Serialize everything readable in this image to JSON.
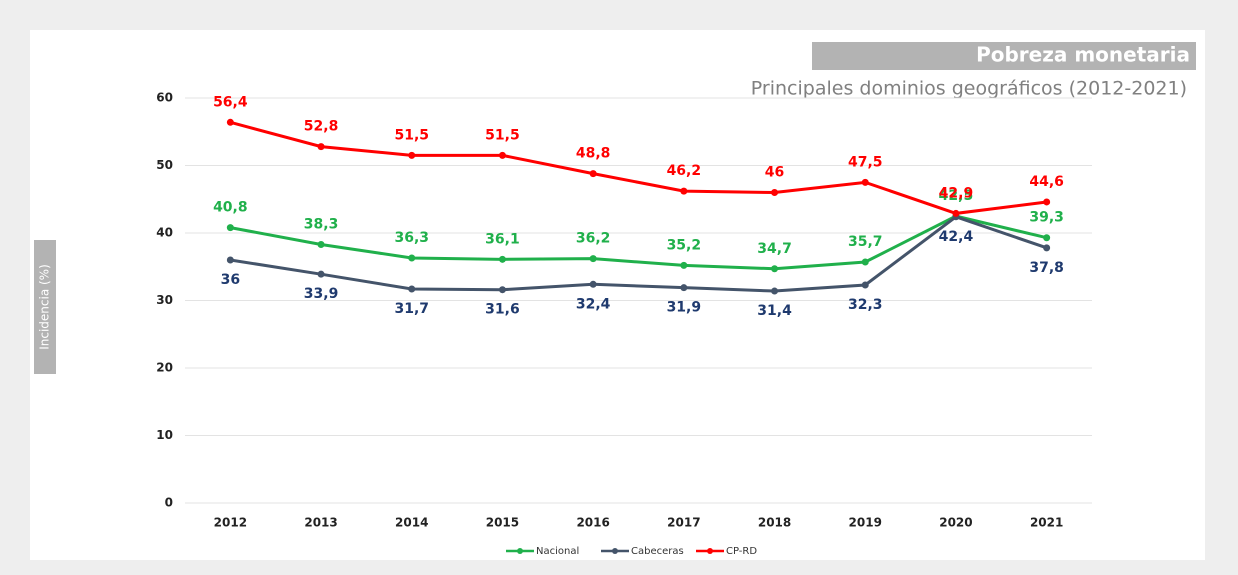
{
  "chart_data": {
    "type": "line",
    "title": "Pobreza monetaria",
    "subtitle": "Principales dominios geográficos (2012-2021)",
    "y_label": "Incidencia (%)",
    "categories": [
      "2012",
      "2013",
      "2014",
      "2015",
      "2016",
      "2017",
      "2018",
      "2019",
      "2020",
      "2021"
    ],
    "series": [
      {
        "name": "Nacional",
        "color": "#20b04b",
        "values": [
          40.8,
          38.3,
          36.3,
          36.1,
          36.2,
          35.2,
          34.7,
          35.7,
          42.5,
          39.3
        ],
        "value_labels": [
          "40,8",
          "38,3",
          "36,3",
          "36,1",
          "36,2",
          "35,2",
          "34,7",
          "35,7",
          "42,5",
          "39,3"
        ]
      },
      {
        "name": "Cabeceras",
        "color": "#44546a",
        "values": [
          36,
          33.9,
          31.7,
          31.6,
          32.4,
          31.9,
          31.4,
          32.3,
          42.4,
          37.8
        ],
        "value_labels": [
          "36",
          "33,9",
          "31,7",
          "31,6",
          "32,4",
          "31,9",
          "31,4",
          "32,3",
          "42,4",
          "37,8"
        ]
      },
      {
        "name": "CP-RD",
        "color": "#ff0000",
        "values": [
          56.4,
          52.8,
          51.5,
          51.5,
          48.8,
          46.2,
          46,
          47.5,
          42.9,
          44.6
        ],
        "value_labels": [
          "56,4",
          "52,8",
          "51,5",
          "51,5",
          "48,8",
          "46,2",
          "46",
          "47,5",
          "42,9",
          "44,6"
        ]
      }
    ],
    "ylim": [
      0,
      60
    ],
    "yticks": [
      0,
      10,
      20,
      30,
      40,
      50,
      60
    ],
    "grid": true,
    "legend": "bottom"
  }
}
